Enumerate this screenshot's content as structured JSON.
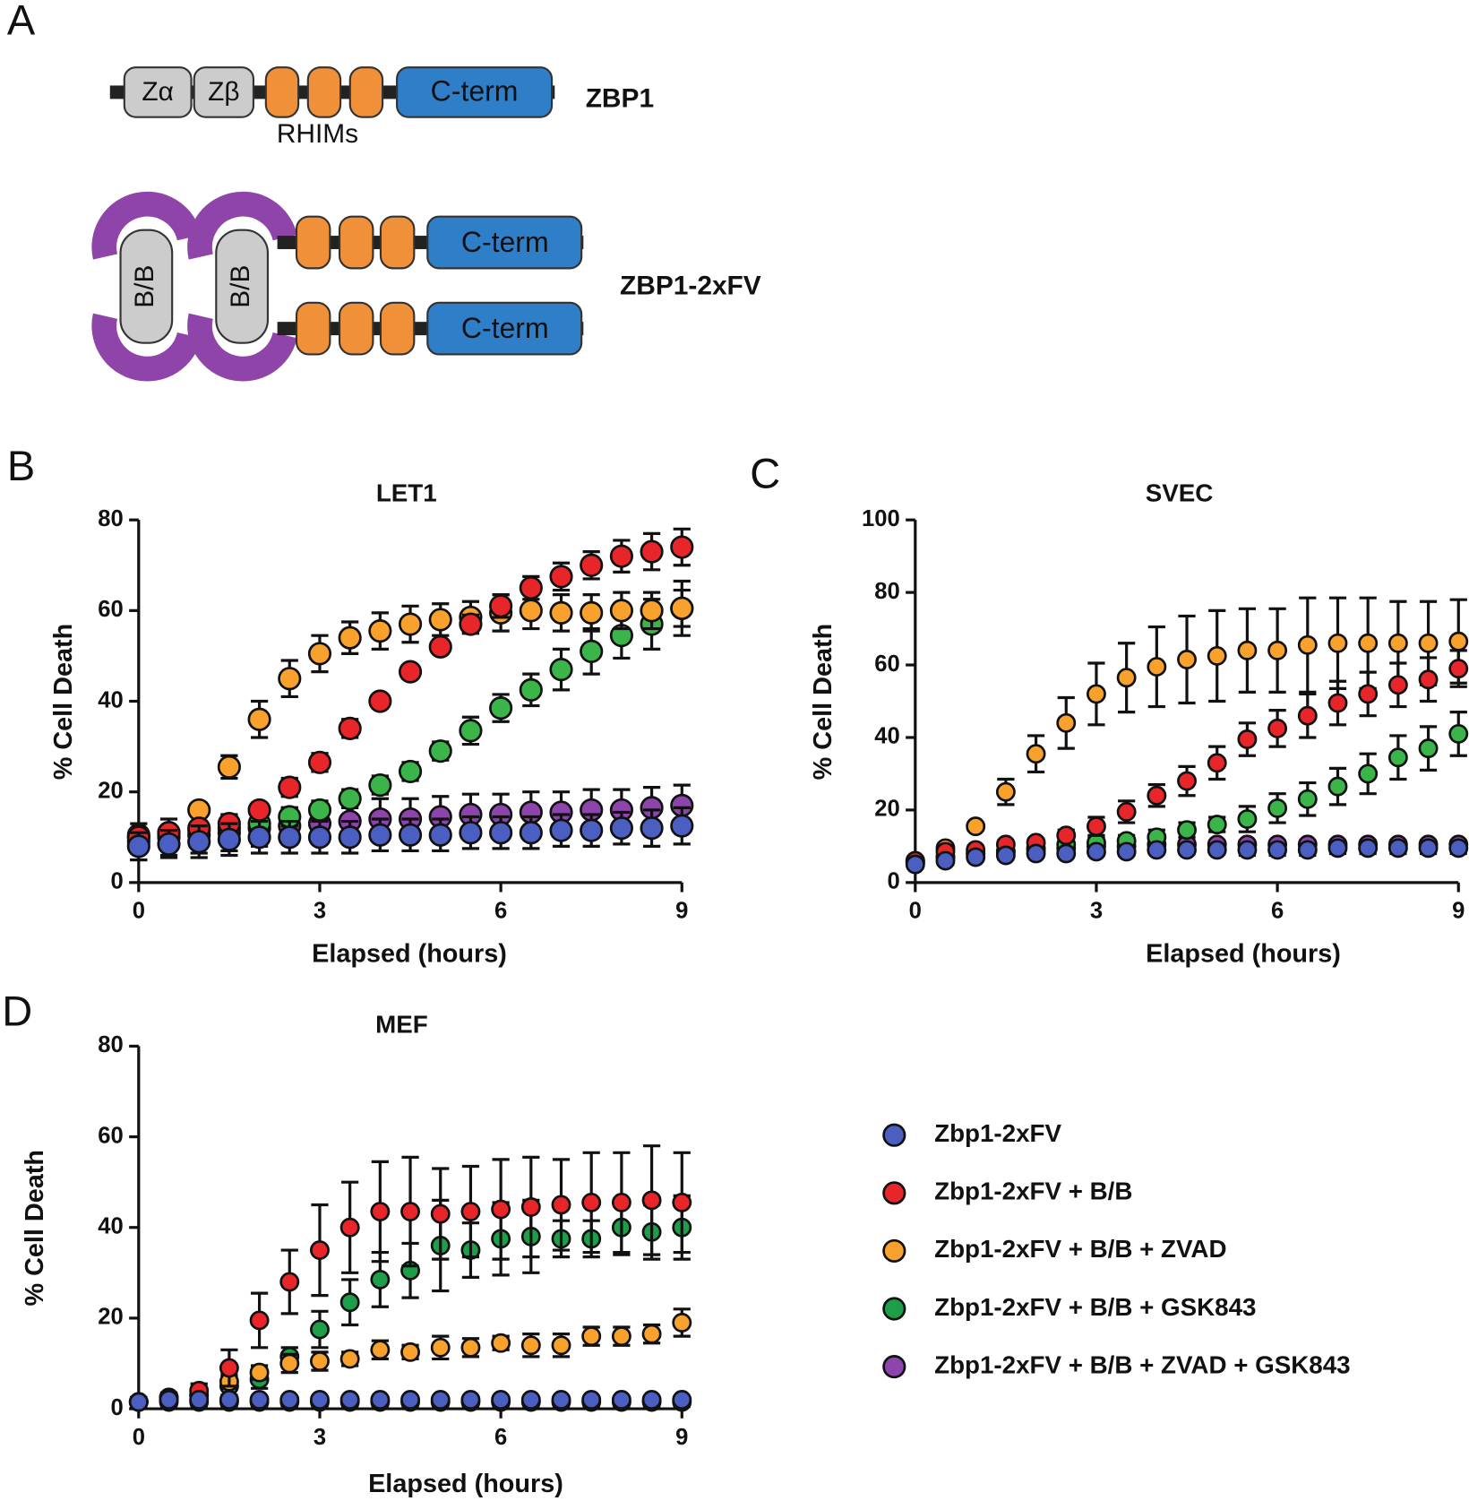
{
  "diagram": {
    "panel": "A",
    "zbp1": {
      "domains": [
        "Zα",
        "Zβ"
      ],
      "rhims_label": "RHIMs",
      "cterm": "C-term",
      "name": "ZBP1"
    },
    "zbp1_2xfv": {
      "dimerizer": [
        "B/B",
        "B/B"
      ],
      "cterm": [
        "C-term",
        "C-term"
      ],
      "name": "ZBP1-2xFV"
    }
  },
  "chart_data": [
    {
      "type": "scatter",
      "panel": "B",
      "title": "LET1",
      "x_label": "Elapsed (hours)",
      "y_label": "% Cell Death",
      "x": [
        0,
        0.5,
        1,
        1.5,
        2,
        2.5,
        3,
        3.5,
        4,
        4.5,
        5,
        5.5,
        6,
        6.5,
        7,
        7.5,
        8,
        8.5,
        9
      ],
      "xlim": [
        0,
        9
      ],
      "xticks": [
        0,
        3,
        6,
        9
      ],
      "ylim": [
        0,
        80
      ],
      "yticks": [
        0,
        20,
        40,
        60,
        80
      ],
      "series": [
        {
          "color": "#4a5fc1",
          "values": [
            8,
            8.5,
            9,
            9.5,
            10,
            10,
            10,
            10,
            10.5,
            10.5,
            10.5,
            11,
            11,
            11,
            11.5,
            11.5,
            12,
            12,
            12.5
          ],
          "errors": [
            3,
            3,
            3.5,
            3.5,
            3.5,
            3.5,
            3.5,
            3.5,
            3.5,
            3.5,
            3.5,
            3.5,
            3.5,
            3.5,
            3.5,
            3.5,
            3.5,
            4,
            4
          ]
        },
        {
          "color": "#e8262a",
          "values": [
            10,
            11,
            12,
            13,
            16,
            21,
            26.5,
            34,
            40,
            46.5,
            52,
            57,
            61,
            65,
            67.5,
            70,
            72,
            73,
            74
          ],
          "errors": [
            1,
            1,
            1.5,
            1.5,
            1.5,
            2,
            2,
            2,
            1.5,
            1.5,
            1.5,
            2,
            2.5,
            2.5,
            3,
            3,
            3.5,
            4,
            4
          ]
        },
        {
          "color": "#f9a12d",
          "values": [
            10.5,
            11,
            16,
            25.5,
            36,
            45,
            50.5,
            54,
            55.5,
            57,
            58,
            58.5,
            59.5,
            60,
            59.5,
            59.5,
            60,
            60,
            60.5
          ],
          "errors": [
            1,
            1,
            1.5,
            2.5,
            4,
            4,
            4,
            3.5,
            4,
            4,
            3.5,
            3.5,
            4,
            4,
            4,
            4,
            4,
            4,
            4
          ]
        },
        {
          "color": "#3bb54a",
          "values": [
            10,
            11,
            11.5,
            12,
            13,
            14.5,
            16,
            18.5,
            21.5,
            24.5,
            29,
            33.5,
            38.5,
            42.5,
            47,
            51,
            54.5,
            57,
            60.5
          ],
          "errors": [
            1,
            1,
            1,
            1.5,
            1.5,
            2,
            2,
            2,
            2,
            2,
            2,
            3,
            3,
            3.5,
            4.5,
            5,
            5,
            5.5,
            6
          ]
        },
        {
          "color": "#8e44ad",
          "values": [
            9,
            10,
            10.5,
            11,
            12,
            12.5,
            13,
            13.5,
            14,
            14,
            14.5,
            15,
            15,
            15.5,
            15.5,
            16,
            16,
            16.5,
            17
          ],
          "errors": [
            4,
            4,
            4,
            4,
            4,
            4,
            4,
            4,
            4.5,
            4.5,
            4.5,
            4.5,
            4.5,
            4.5,
            4.5,
            4.5,
            4.5,
            4.5,
            4.5
          ]
        }
      ]
    },
    {
      "type": "scatter",
      "panel": "C",
      "title": "SVEC",
      "x_label": "Elapsed (hours)",
      "y_label": "% Cell Death",
      "x": [
        0,
        0.5,
        1,
        1.5,
        2,
        2.5,
        3,
        3.5,
        4,
        4.5,
        5,
        5.5,
        6,
        6.5,
        7,
        7.5,
        8,
        8.5,
        9
      ],
      "xlim": [
        0,
        9
      ],
      "xticks": [
        0,
        3,
        6,
        9
      ],
      "ylim": [
        0,
        100
      ],
      "yticks": [
        0,
        20,
        40,
        60,
        80,
        100
      ],
      "series": [
        {
          "color": "#4a5fc1",
          "values": [
            5,
            6,
            7,
            7.5,
            8,
            8,
            8.5,
            8.5,
            9,
            9,
            9,
            9,
            9,
            9,
            9.5,
            9.5,
            9.5,
            9.5,
            9.5
          ],
          "errors": [
            1,
            1,
            1,
            1,
            1,
            1,
            1,
            1,
            1,
            1,
            1,
            1.5,
            1.5,
            1.5,
            1.5,
            1.5,
            1.5,
            1.5,
            1.5
          ]
        },
        {
          "color": "#e8262a",
          "values": [
            6,
            8.5,
            9,
            10.5,
            11,
            13,
            15.5,
            19.5,
            24,
            28,
            33,
            39.5,
            42.5,
            46,
            49.5,
            52,
            54.5,
            56,
            59
          ],
          "errors": [
            1,
            1,
            1,
            1,
            1,
            1.5,
            2.5,
            3,
            3,
            4,
            4.5,
            4.5,
            5,
            6,
            6,
            6,
            6,
            6,
            5
          ]
        },
        {
          "color": "#f9a12d",
          "values": [
            6,
            9.5,
            15.5,
            25,
            35.5,
            44,
            52,
            56.5,
            59.5,
            61.5,
            62.5,
            64,
            64,
            65.5,
            66,
            66,
            66,
            66,
            66.5
          ],
          "errors": [
            1,
            1,
            1,
            3.5,
            5,
            7,
            8.5,
            9.5,
            11,
            12,
            12.5,
            11.5,
            11.5,
            13,
            12.5,
            12.5,
            11.5,
            11.5,
            11.5
          ]
        },
        {
          "color": "#3bb54a",
          "values": [
            5.5,
            7,
            8,
            8.5,
            9.5,
            10.5,
            11,
            11.5,
            12.5,
            14.5,
            16,
            17.5,
            20.5,
            23,
            26.5,
            30,
            34.5,
            37,
            41
          ],
          "errors": [
            1,
            1,
            1,
            1,
            1,
            1,
            1.5,
            1.5,
            2,
            2,
            2,
            3.5,
            4,
            4.5,
            5,
            5.5,
            6,
            6,
            6
          ]
        },
        {
          "color": "#8e44ad",
          "values": [
            5.5,
            7,
            8,
            8.5,
            9,
            9.5,
            10,
            10,
            10.5,
            10.5,
            10.5,
            10.5,
            10.5,
            10.5,
            10.5,
            10.5,
            10.5,
            10.5,
            10.5
          ],
          "errors": [
            1,
            1,
            1,
            1,
            1,
            1,
            1,
            1,
            1,
            1,
            1,
            1,
            1,
            1,
            1,
            1,
            1,
            1,
            1
          ]
        }
      ]
    },
    {
      "type": "scatter",
      "panel": "D",
      "title": "MEF",
      "x_label": "Elapsed (hours)",
      "y_label": "% Cell Death",
      "x": [
        0,
        0.5,
        1,
        1.5,
        2,
        2.5,
        3,
        3.5,
        4,
        4.5,
        5,
        5.5,
        6,
        6.5,
        7,
        7.5,
        8,
        8.5,
        9
      ],
      "xlim": [
        0,
        9
      ],
      "xticks": [
        0,
        3,
        6,
        9
      ],
      "ylim": [
        0,
        80
      ],
      "yticks": [
        0,
        20,
        40,
        60,
        80
      ],
      "series": [
        {
          "name": "Zbp1-2xFV",
          "color": "#4a5fc1",
          "values": [
            1.5,
            2,
            2,
            2,
            2,
            2,
            2,
            2,
            2,
            2,
            2,
            2,
            2,
            2,
            2,
            2,
            2,
            2,
            2
          ],
          "errors": [
            0.5,
            0.5,
            0.5,
            0.5,
            0.5,
            0.5,
            0.5,
            0.5,
            0.5,
            0.5,
            0.5,
            0.5,
            0.5,
            0.5,
            0.5,
            0.5,
            0.5,
            0.5,
            0.5
          ]
        },
        {
          "name": "Zbp1-2xFV + B/B",
          "color": "#e8262a",
          "values": [
            1.5,
            2.5,
            4,
            9,
            19.5,
            28,
            35,
            40,
            43.5,
            43.5,
            43,
            43.5,
            44,
            44.5,
            45,
            45.5,
            45.5,
            46,
            45.5
          ],
          "errors": [
            0.5,
            1,
            1.5,
            4,
            6,
            7,
            10,
            10,
            11,
            12,
            10,
            10,
            11,
            11,
            10,
            11,
            11,
            12,
            11
          ]
        },
        {
          "name": "Zbp1-2xFV + B/B + ZVAD",
          "color": "#f9a12d",
          "values": [
            1.5,
            2.5,
            3,
            6,
            8,
            10,
            10.5,
            11,
            13,
            12.5,
            13.5,
            13.5,
            14.5,
            14,
            14,
            16,
            16,
            16.5,
            19
          ],
          "errors": [
            1,
            1,
            1,
            1.5,
            1.5,
            2,
            2,
            1.5,
            2,
            1.5,
            2.5,
            2,
            1.5,
            2.5,
            2.5,
            2,
            2,
            2,
            3
          ]
        },
        {
          "name": "Zbp1-2xFV + B/B + GSK843",
          "color": "#1e9e48",
          "values": [
            1.5,
            2,
            3,
            5,
            6.5,
            11.5,
            17.5,
            23.5,
            28.5,
            30.5,
            36,
            35,
            37.5,
            38,
            37.5,
            37.5,
            40,
            39,
            40
          ],
          "errors": [
            1,
            1,
            1,
            2,
            2,
            2,
            4,
            5,
            6,
            6,
            10,
            6,
            8,
            8,
            4,
            4,
            6,
            6,
            7
          ]
        },
        {
          "name": "Zbp1-2xFV + B/B + ZVAD + GSK843",
          "color": "#8e44ad",
          "values": [
            1.5,
            1.5,
            1.5,
            1.5,
            1.5,
            1.5,
            1.5,
            1.5,
            1.5,
            1.5,
            1.5,
            1.5,
            1.5,
            1.5,
            1.5,
            1.5,
            1.5,
            1.5,
            1.5
          ],
          "errors": [
            1,
            1,
            1,
            1,
            1,
            1,
            1,
            1,
            1,
            1,
            1,
            1,
            1,
            1,
            1,
            1,
            1,
            1,
            1
          ]
        }
      ]
    }
  ]
}
